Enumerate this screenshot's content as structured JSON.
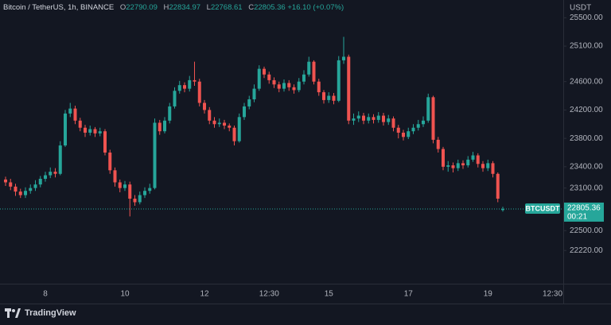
{
  "chart_data": {
    "type": "candlestick",
    "title": "Bitcoin / TetherUS, 1h, BINANCE",
    "ohlc_labels": [
      "O",
      "H",
      "L",
      "C"
    ],
    "change": "+16.10 (+0.07%)",
    "symbol_label": "BTCUSDT",
    "countdown": "00:21",
    "y_unit": "USDT",
    "brand": "TradingView",
    "up_color": "#26a69a",
    "down_color": "#ef5350",
    "grid": false,
    "ylim": [
      21752,
      25750
    ],
    "yticks": [
      {
        "value": 25500,
        "label": "25500.00"
      },
      {
        "value": 25100,
        "label": "25100.00"
      },
      {
        "value": 24600,
        "label": "24600.00"
      },
      {
        "value": 24200,
        "label": "24200.00"
      },
      {
        "value": 23800,
        "label": "23800.00"
      },
      {
        "value": 23400,
        "label": "23400.00"
      },
      {
        "value": 23100,
        "label": "23100.00"
      },
      {
        "value": 22500,
        "label": "22500.00"
      },
      {
        "value": 22220,
        "label": "22220.00"
      }
    ],
    "categories": [
      null,
      null,
      null,
      null,
      null,
      null,
      null,
      null,
      "8",
      null,
      null,
      null,
      null,
      null,
      null,
      null,
      null,
      null,
      null,
      null,
      null,
      null,
      null,
      null,
      "10",
      null,
      null,
      null,
      null,
      null,
      null,
      null,
      null,
      null,
      null,
      null,
      null,
      null,
      null,
      null,
      "12",
      null,
      null,
      null,
      null,
      null,
      null,
      null,
      null,
      null,
      null,
      null,
      null,
      "12:30",
      null,
      null,
      null,
      null,
      null,
      null,
      null,
      null,
      null,
      null,
      null,
      "15",
      null,
      null,
      null,
      null,
      null,
      null,
      null,
      null,
      null,
      null,
      null,
      null,
      null,
      null,
      null,
      "17",
      null,
      null,
      null,
      null,
      null,
      null,
      null,
      null,
      null,
      null,
      null,
      null,
      null,
      null,
      null,
      "19",
      null,
      null,
      null,
      null,
      null,
      null,
      null,
      null,
      null,
      null,
      null,
      null,
      "12:30"
    ],
    "open": [
      23220,
      23180,
      23120,
      23050,
      23000,
      23060,
      23100,
      23150,
      23230,
      23280,
      23330,
      23300,
      23700,
      24150,
      24220,
      24050,
      23950,
      23880,
      23930,
      23870,
      23900,
      23600,
      23350,
      23180,
      23100,
      23150,
      22950,
      22900,
      23000,
      23060,
      23100,
      24020,
      23900,
      24050,
      24250,
      24470,
      24550,
      24500,
      24620,
      24600,
      24300,
      24200,
      24050,
      24000,
      24020,
      23980,
      23950,
      23760,
      24100,
      24250,
      24350,
      24500,
      24780,
      24700,
      24620,
      24560,
      24500,
      24580,
      24520,
      24480,
      24600,
      24700,
      24880,
      24600,
      24450,
      24340,
      24400,
      24330,
      24900,
      24950,
      24050,
      24080,
      24120,
      24050,
      24100,
      24060,
      24120,
      24030,
      24080,
      23950,
      23880,
      23820,
      23900,
      23950,
      24000,
      24050,
      24380,
      23780,
      23650,
      23400,
      23420,
      23380,
      23450,
      23420,
      23500,
      23560,
      23440,
      23380,
      23450,
      23300,
      22790.09,
      null,
      null,
      null,
      null,
      null,
      null,
      null,
      null,
      null,
      null
    ],
    "high": [
      23260,
      23230,
      23160,
      23090,
      23110,
      23150,
      23210,
      23270,
      23330,
      23390,
      23380,
      23760,
      24200,
      24300,
      24260,
      24090,
      23990,
      23980,
      23960,
      23950,
      23930,
      23640,
      23390,
      23220,
      23200,
      23190,
      23000,
      23050,
      23110,
      23160,
      24080,
      24060,
      24100,
      24300,
      24520,
      24610,
      24590,
      24680,
      24880,
      24640,
      24340,
      24240,
      24100,
      24080,
      24060,
      24010,
      23980,
      24150,
      24300,
      24400,
      24560,
      24830,
      24810,
      24740,
      24660,
      24600,
      24630,
      24620,
      24560,
      24650,
      24760,
      24950,
      24900,
      24640,
      24480,
      24450,
      24440,
      24960,
      25230,
      24980,
      24150,
      24180,
      24160,
      24150,
      24140,
      24170,
      24160,
      24130,
      24110,
      23990,
      23920,
      23950,
      24000,
      24060,
      24110,
      24430,
      24400,
      23820,
      23680,
      23480,
      23460,
      23500,
      23490,
      23550,
      23610,
      23590,
      23480,
      23500,
      23480,
      23320,
      22834.97,
      null,
      null,
      null,
      null,
      null,
      null,
      null,
      null,
      null,
      null
    ],
    "low": [
      23130,
      23070,
      22990,
      22960,
      22960,
      23020,
      23060,
      23110,
      23190,
      23240,
      23250,
      23280,
      23680,
      24100,
      24000,
      23900,
      23820,
      23840,
      23820,
      23830,
      23560,
      23300,
      23120,
      23040,
      23060,
      22700,
      22850,
      22870,
      22960,
      23020,
      23080,
      23850,
      23870,
      24010,
      24220,
      24430,
      24450,
      24460,
      24540,
      24250,
      24150,
      24000,
      23950,
      23960,
      23930,
      23900,
      23700,
      23740,
      24060,
      24210,
      24310,
      24470,
      24650,
      24570,
      24510,
      24450,
      24460,
      24470,
      24430,
      24450,
      24560,
      24670,
      24560,
      24400,
      24290,
      24300,
      24280,
      24310,
      24850,
      24000,
      23990,
      24030,
      24000,
      24010,
      24010,
      24020,
      23980,
      23990,
      23900,
      23800,
      23770,
      23790,
      23860,
      23910,
      23960,
      24020,
      23730,
      23600,
      23350,
      23330,
      23320,
      23340,
      23370,
      23390,
      23470,
      23390,
      23330,
      23340,
      23250,
      22900,
      22768.61,
      null,
      null,
      null,
      null,
      null,
      null,
      null,
      null,
      null,
      null
    ],
    "close": [
      23180,
      23120,
      23050,
      23000,
      23060,
      23100,
      23150,
      23230,
      23280,
      23330,
      23300,
      23700,
      24150,
      24220,
      24050,
      23950,
      23880,
      23930,
      23870,
      23900,
      23600,
      23350,
      23180,
      23100,
      23150,
      22950,
      22900,
      23000,
      23060,
      23100,
      24020,
      23900,
      24050,
      24250,
      24470,
      24550,
      24500,
      24620,
      24600,
      24300,
      24200,
      24050,
      24000,
      24020,
      23980,
      23950,
      23760,
      24100,
      24250,
      24350,
      24500,
      24780,
      24700,
      24620,
      24560,
      24500,
      24580,
      24520,
      24480,
      24600,
      24700,
      24880,
      24600,
      24450,
      24340,
      24400,
      24330,
      24900,
      24950,
      24050,
      24080,
      24120,
      24050,
      24100,
      24060,
      24120,
      24030,
      24080,
      23950,
      23880,
      23820,
      23900,
      23950,
      24000,
      24050,
      24380,
      23780,
      23650,
      23400,
      23420,
      23380,
      23450,
      23420,
      23500,
      23560,
      23440,
      23380,
      23450,
      23300,
      22950,
      22805.36,
      null,
      null,
      null,
      null,
      null,
      null,
      null,
      null,
      null,
      null
    ]
  }
}
